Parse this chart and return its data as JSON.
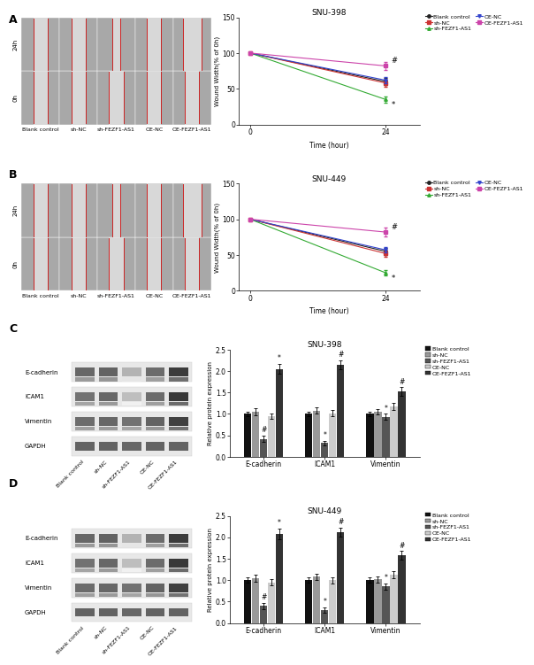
{
  "panel_labels": [
    "A",
    "B",
    "C",
    "D"
  ],
  "line_chart_A": {
    "title": "SNU-398",
    "xlabel": "Time (hour)",
    "ylabel": "Wound Width(% of 0h)",
    "ylim": [
      0,
      150
    ],
    "yticks": [
      0,
      50,
      100,
      150
    ],
    "series": [
      {
        "label": "Blank control",
        "color": "#222222",
        "marker": "o",
        "values": [
          100,
          60
        ],
        "err24": 5
      },
      {
        "label": "sh-NC",
        "color": "#cc3333",
        "marker": "s",
        "values": [
          100,
          58
        ],
        "err24": 5
      },
      {
        "label": "sh-FEZF1-AS1",
        "color": "#33aa33",
        "marker": "^",
        "values": [
          100,
          35
        ],
        "err24": 4
      },
      {
        "label": "OE-NC",
        "color": "#3344cc",
        "marker": "v",
        "values": [
          100,
          62
        ],
        "err24": 4
      },
      {
        "label": "OE-FEZF1-AS1",
        "color": "#cc44aa",
        "marker": "s",
        "values": [
          100,
          82
        ],
        "err24": 6
      }
    ],
    "ann_hash_val": 82,
    "ann_star_val": 35
  },
  "line_chart_B": {
    "title": "SNU-449",
    "xlabel": "Time (hour)",
    "ylabel": "Wound Width(% of 0h)",
    "ylim": [
      0,
      150
    ],
    "yticks": [
      0,
      50,
      100,
      150
    ],
    "series": [
      {
        "label": "Blank control",
        "color": "#222222",
        "marker": "o",
        "values": [
          100,
          55
        ],
        "err24": 5
      },
      {
        "label": "sh-NC",
        "color": "#cc3333",
        "marker": "s",
        "values": [
          100,
          52
        ],
        "err24": 5
      },
      {
        "label": "sh-FEZF1-AS1",
        "color": "#33aa33",
        "marker": "^",
        "values": [
          100,
          25
        ],
        "err24": 4
      },
      {
        "label": "OE-NC",
        "color": "#3344cc",
        "marker": "v",
        "values": [
          100,
          57
        ],
        "err24": 4
      },
      {
        "label": "OE-FEZF1-AS1",
        "color": "#cc44aa",
        "marker": "s",
        "values": [
          100,
          82
        ],
        "err24": 6
      }
    ],
    "ann_hash_val": 82,
    "ann_star_val": 25
  },
  "bar_chart_C": {
    "title": "SNU-398",
    "ylabel": "Relative protein expression",
    "groups": [
      "E-cadherin",
      "ICAM1",
      "Vimentin"
    ],
    "ylim": [
      0,
      2.5
    ],
    "yticks": [
      0.0,
      0.5,
      1.0,
      1.5,
      2.0,
      2.5
    ],
    "bars": [
      {
        "label": "Blank control",
        "color": "#111111",
        "values": [
          1.0,
          1.0,
          1.0
        ],
        "errors": [
          0.06,
          0.06,
          0.06
        ]
      },
      {
        "label": "sh-NC",
        "color": "#999999",
        "values": [
          1.05,
          1.08,
          1.05
        ],
        "errors": [
          0.08,
          0.07,
          0.07
        ]
      },
      {
        "label": "sh-FEZF1-AS1",
        "color": "#555555",
        "values": [
          0.42,
          0.32,
          0.93
        ],
        "errors": [
          0.07,
          0.06,
          0.07
        ]
      },
      {
        "label": "OE-NC",
        "color": "#cccccc",
        "values": [
          0.95,
          1.02,
          1.18
        ],
        "errors": [
          0.07,
          0.07,
          0.08
        ]
      },
      {
        "label": "OE-FEZF1-AS1",
        "color": "#333333",
        "values": [
          2.05,
          2.15,
          1.52
        ],
        "errors": [
          0.12,
          0.1,
          0.1
        ]
      }
    ],
    "ann": {
      "E-cadherin": [
        {
          "bi": 2,
          "t": "#"
        },
        {
          "bi": 4,
          "t": "*"
        }
      ],
      "ICAM1": [
        {
          "bi": 2,
          "t": "*"
        },
        {
          "bi": 4,
          "t": "#"
        }
      ],
      "Vimentin": [
        {
          "bi": 2,
          "t": "*"
        },
        {
          "bi": 4,
          "t": "#"
        }
      ]
    }
  },
  "bar_chart_D": {
    "title": "SNU-449",
    "ylabel": "Relative protein expression",
    "groups": [
      "E-cadherin",
      "ICAM1",
      "Vimentin"
    ],
    "ylim": [
      0,
      2.5
    ],
    "yticks": [
      0.0,
      0.5,
      1.0,
      1.5,
      2.0,
      2.5
    ],
    "bars": [
      {
        "label": "Blank control",
        "color": "#111111",
        "values": [
          1.0,
          1.0,
          1.0
        ],
        "errors": [
          0.06,
          0.06,
          0.06
        ]
      },
      {
        "label": "sh-NC",
        "color": "#999999",
        "values": [
          1.05,
          1.08,
          1.02
        ],
        "errors": [
          0.08,
          0.07,
          0.07
        ]
      },
      {
        "label": "sh-FEZF1-AS1",
        "color": "#555555",
        "values": [
          0.4,
          0.3,
          0.85
        ],
        "errors": [
          0.07,
          0.06,
          0.07
        ]
      },
      {
        "label": "OE-NC",
        "color": "#cccccc",
        "values": [
          0.95,
          1.0,
          1.12
        ],
        "errors": [
          0.07,
          0.07,
          0.08
        ]
      },
      {
        "label": "OE-FEZF1-AS1",
        "color": "#333333",
        "values": [
          2.08,
          2.12,
          1.58
        ],
        "errors": [
          0.12,
          0.1,
          0.1
        ]
      }
    ],
    "ann": {
      "E-cadherin": [
        {
          "bi": 2,
          "t": "#"
        },
        {
          "bi": 4,
          "t": "*"
        }
      ],
      "ICAM1": [
        {
          "bi": 2,
          "t": "*"
        },
        {
          "bi": 4,
          "t": "#"
        }
      ],
      "Vimentin": [
        {
          "bi": 2,
          "t": "*"
        },
        {
          "bi": 4,
          "t": "#"
        }
      ]
    }
  },
  "legend_line": [
    {
      "label": "Blank control",
      "color": "#222222",
      "marker": "o"
    },
    {
      "label": "sh-NC",
      "color": "#cc3333",
      "marker": "s"
    },
    {
      "label": "sh-FEZF1-AS1",
      "color": "#33aa33",
      "marker": "^"
    },
    {
      "label": "OE-NC",
      "color": "#3344cc",
      "marker": "v"
    },
    {
      "label": "OE-FEZF1-AS1",
      "color": "#cc44aa",
      "marker": "s"
    }
  ],
  "legend_bar": [
    {
      "label": "Blank control",
      "color": "#111111"
    },
    {
      "label": "sh-NC",
      "color": "#999999"
    },
    {
      "label": "sh-FEZF1-AS1",
      "color": "#555555"
    },
    {
      "label": "OE-NC",
      "color": "#cccccc"
    },
    {
      "label": "OE-FEZF1-AS1",
      "color": "#333333"
    }
  ],
  "col_labels": [
    "Blank control",
    "sh-NC",
    "sh-FEZF1-AS1",
    "OE-NC",
    "OE-FEZF1-AS1"
  ],
  "wb_row_labels": [
    "E-cadherin",
    "ICAM1",
    "Vimentin",
    "GAPDH"
  ],
  "fig_bg": "#ffffff"
}
